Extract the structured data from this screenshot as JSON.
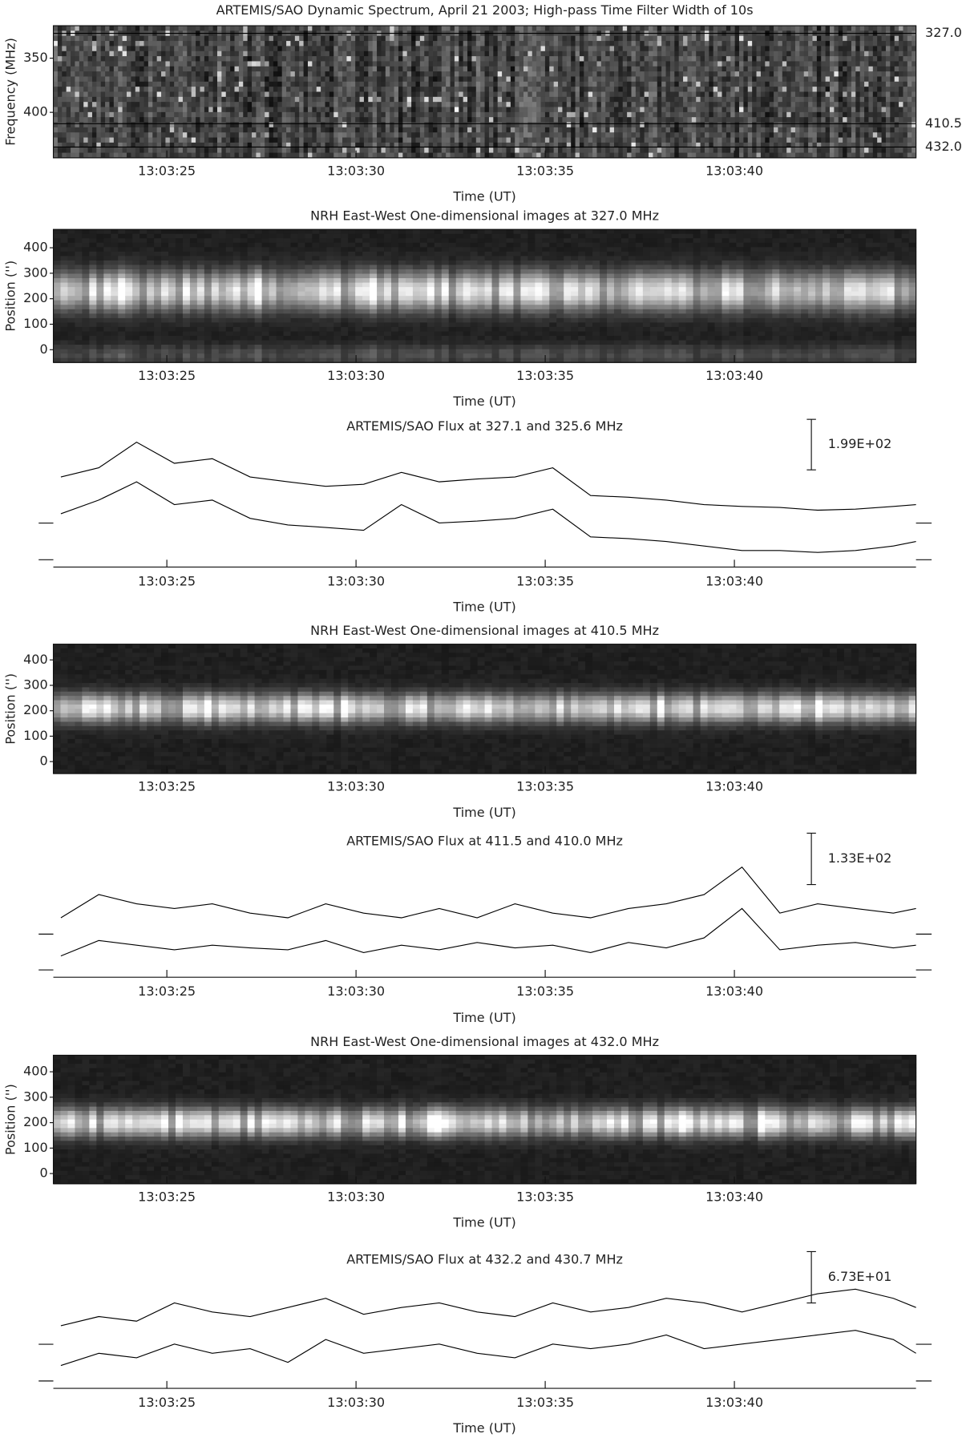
{
  "chart_data": [
    {
      "type": "heatmap",
      "title": "ARTEMIS/SAO Dynamic Spectrum, April 21 2003; High-pass Time Filter Width of 10s",
      "x_label": "Time (UT)",
      "y_label": "Frequency (MHz)",
      "xlim": [
        22.0,
        44.8
      ],
      "xticks": [
        {
          "value": 25,
          "label": "13:03:25"
        },
        {
          "value": 30,
          "label": "13:03:30"
        },
        {
          "value": 35,
          "label": "13:03:35"
        },
        {
          "value": 40,
          "label": "13:03:40"
        }
      ],
      "ylim": [
        442,
        320
      ],
      "yticks": [
        350,
        400
      ],
      "reference_lines": [
        {
          "value": 327.0,
          "label": "327.0"
        },
        {
          "value": 410.5,
          "label": "410.5"
        },
        {
          "value": 432.0,
          "label": "432.0"
        }
      ]
    },
    {
      "type": "heatmap",
      "title": "NRH East-West One-dimensional images at 327.0 MHz",
      "x_label": "Time (UT)",
      "y_label": "Position ('')",
      "xlim": [
        22.0,
        44.8
      ],
      "xticks": [
        {
          "value": 25,
          "label": "13:03:25"
        },
        {
          "value": 30,
          "label": "13:03:30"
        },
        {
          "value": 35,
          "label": "13:03:35"
        },
        {
          "value": 40,
          "label": "13:03:40"
        }
      ],
      "ylim": [
        -50,
        472
      ],
      "yticks": [
        0,
        100,
        200,
        300,
        400
      ]
    },
    {
      "type": "line",
      "title": "ARTEMIS/SAO Flux at 327.1 and 325.6 MHz",
      "x_label": "Time (UT)",
      "xlim": [
        22.0,
        44.8
      ],
      "xticks": [
        {
          "value": 25,
          "label": "13:03:25"
        },
        {
          "value": 30,
          "label": "13:03:30"
        },
        {
          "value": 35,
          "label": "13:03:35"
        },
        {
          "value": 40,
          "label": "13:03:40"
        }
      ],
      "ylim": [
        0,
        535
      ],
      "scale_bar": {
        "value": 199,
        "label": "1.99E+02"
      },
      "x": [
        22.2,
        23.2,
        24.2,
        25.2,
        26.2,
        27.2,
        28.2,
        29.2,
        30.2,
        31.2,
        32.2,
        33.2,
        34.2,
        35.2,
        36.2,
        37.2,
        38.2,
        39.2,
        40.2,
        41.2,
        42.2,
        43.2,
        44.2,
        44.8
      ],
      "series": [
        {
          "color": "#000000",
          "values": [
            355,
            391,
            492,
            409,
            427,
            355,
            336,
            318,
            326,
            373,
            336,
            347,
            355,
            391,
            282,
            275,
            264,
            246,
            239,
            235,
            224,
            228,
            239,
            246
          ]
        },
        {
          "color": "#000000",
          "values": [
            210,
            264,
            336,
            246,
            264,
            192,
            166,
            156,
            145,
            246,
            174,
            181,
            192,
            228,
            119,
            112,
            101,
            83,
            65,
            65,
            58,
            65,
            83,
            101
          ]
        }
      ]
    },
    {
      "type": "heatmap",
      "title": "NRH East-West One-dimensional images at 410.5 MHz",
      "x_label": "Time (UT)",
      "y_label": "Position ('')",
      "xlim": [
        22.0,
        44.8
      ],
      "xticks": [
        {
          "value": 25,
          "label": "13:03:25"
        },
        {
          "value": 30,
          "label": "13:03:30"
        },
        {
          "value": 35,
          "label": "13:03:35"
        },
        {
          "value": 40,
          "label": "13:03:40"
        }
      ],
      "ylim": [
        -47,
        462
      ],
      "yticks": [
        0,
        100,
        200,
        300,
        400
      ]
    },
    {
      "type": "line",
      "title": "ARTEMIS/SAO Flux at 411.5 and 410.0 MHz",
      "x_label": "Time (UT)",
      "xlim": [
        22.0,
        44.8
      ],
      "xticks": [
        {
          "value": 25,
          "label": "13:03:25"
        },
        {
          "value": 30,
          "label": "13:03:30"
        },
        {
          "value": 35,
          "label": "13:03:35"
        },
        {
          "value": 40,
          "label": "13:03:40"
        }
      ],
      "ylim": [
        0,
        380
      ],
      "scale_bar": {
        "value": 133,
        "label": "1.33E+02"
      },
      "x": [
        22.2,
        23.2,
        24.2,
        25.2,
        26.2,
        27.2,
        28.2,
        29.2,
        30.2,
        31.2,
        32.2,
        33.2,
        34.2,
        35.2,
        36.2,
        37.2,
        38.2,
        39.2,
        40.2,
        41.2,
        42.2,
        43.2,
        44.2,
        44.8
      ],
      "series": [
        {
          "color": "#000000",
          "values": [
            154,
            214,
            190,
            178,
            190,
            166,
            154,
            190,
            166,
            154,
            178,
            154,
            190,
            166,
            154,
            178,
            190,
            214,
            285,
            166,
            190,
            178,
            166,
            178
          ]
        },
        {
          "color": "#000000",
          "values": [
            55,
            95,
            83,
            71,
            83,
            76,
            71,
            95,
            64,
            83,
            71,
            90,
            76,
            83,
            64,
            90,
            76,
            102,
            178,
            71,
            83,
            90,
            76,
            83
          ]
        }
      ]
    },
    {
      "type": "heatmap",
      "title": "NRH East-West One-dimensional images at 432.0 MHz",
      "x_label": "Time (UT)",
      "y_label": "Position ('')",
      "xlim": [
        22.0,
        44.8
      ],
      "xticks": [
        {
          "value": 25,
          "label": "13:03:25"
        },
        {
          "value": 30,
          "label": "13:03:30"
        },
        {
          "value": 35,
          "label": "13:03:35"
        },
        {
          "value": 40,
          "label": "13:03:40"
        }
      ],
      "ylim": [
        -40,
        465
      ],
      "yticks": [
        0,
        100,
        200,
        300,
        400
      ]
    },
    {
      "type": "line",
      "title": "ARTEMIS/SAO Flux at 432.2 and 430.7 MHz",
      "x_label": "Time (UT)",
      "xlim": [
        22.0,
        44.8
      ],
      "xticks": [
        {
          "value": 25,
          "label": "13:03:25"
        },
        {
          "value": 30,
          "label": "13:03:30"
        },
        {
          "value": 35,
          "label": "13:03:35"
        },
        {
          "value": 40,
          "label": "13:03:40"
        }
      ],
      "ylim": [
        0,
        184
      ],
      "scale_bar": {
        "value": 67.3,
        "label": "6.73E+01"
      },
      "x": [
        22.2,
        23.2,
        24.2,
        25.2,
        26.2,
        27.2,
        28.2,
        29.2,
        30.2,
        31.2,
        32.2,
        33.2,
        34.2,
        35.2,
        36.2,
        37.2,
        38.2,
        39.2,
        40.2,
        41.2,
        42.2,
        43.2,
        44.2,
        44.8
      ],
      "series": [
        {
          "color": "#000000",
          "values": [
            82,
            94,
            88,
            112,
            100,
            94,
            106,
            118,
            97,
            106,
            112,
            100,
            94,
            112,
            100,
            106,
            118,
            112,
            100,
            112,
            124,
            130,
            118,
            106
          ]
        },
        {
          "color": "#000000",
          "values": [
            30,
            46,
            40,
            58,
            46,
            52,
            34,
            64,
            46,
            52,
            58,
            46,
            40,
            58,
            52,
            58,
            70,
            52,
            58,
            64,
            70,
            76,
            64,
            46
          ]
        }
      ]
    }
  ]
}
